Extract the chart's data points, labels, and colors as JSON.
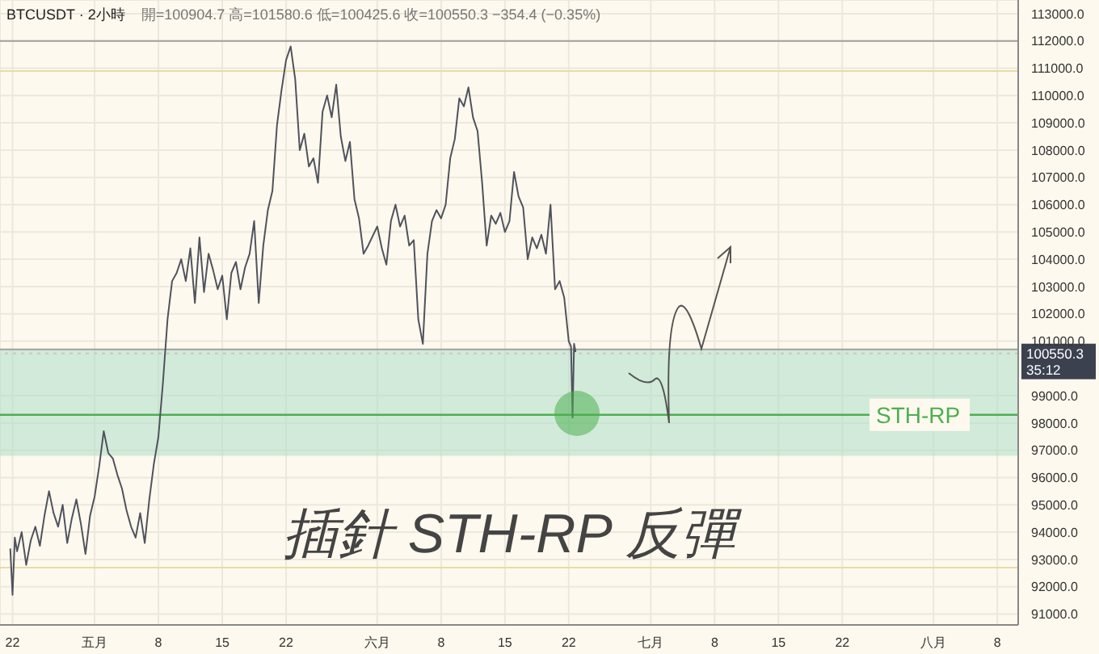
{
  "chart_data": {
    "type": "line",
    "title": "BTCUSDT · 2小時",
    "subtitle": "開=100904.7 高=101580.6 低=100425.6 收=100550.3 −354.4 (−0.35%)",
    "annotations": [
      "插針 STH-RP 反彈",
      "35:12"
    ],
    "x": [
      "--04-21T18:00",
      "--04-22T00:00",
      "--04-22T06:00",
      "--04-22T12:00",
      "--04-23T00:00",
      "--04-23T12:00",
      "--04-24T00:00",
      "--04-24T12:00",
      "--04-25T00:00",
      "--04-25T12:00",
      "--04-26T00:00",
      "--04-26T12:00",
      "--04-27T00:00",
      "--04-27T12:00",
      "--04-28T00:00",
      "--04-28T12:00",
      "--04-29T00:00",
      "--04-29T12:00",
      "--04-30T00:00",
      "--04-30T12:00",
      "--05-01T00:00",
      "--05-01T12:00",
      "--05-02T00:00",
      "--05-02T12:00",
      "--05-03T00:00",
      "--05-03T12:00",
      "--05-04T00:00",
      "--05-04T12:00",
      "--05-05T00:00",
      "--05-05T12:00",
      "--05-06T00:00",
      "--05-06T12:00",
      "--05-07T00:00",
      "--05-07T12:00",
      "--05-08T00:00",
      "--05-08T12:00",
      "--05-09T00:00",
      "--05-09T12:00",
      "--05-10T00:00",
      "--05-10T12:00",
      "--05-11T00:00",
      "--05-11T12:00",
      "--05-12T00:00",
      "--05-12T12:00",
      "--05-13T00:00",
      "--05-13T12:00",
      "--05-14T00:00",
      "--05-14T12:00",
      "--05-15T00:00",
      "--05-15T12:00",
      "--05-16T00:00",
      "--05-16T12:00",
      "--05-17T00:00",
      "--05-17T12:00",
      "--05-18T00:00",
      "--05-18T12:00",
      "--05-19T00:00",
      "--05-19T12:00",
      "--05-20T00:00",
      "--05-20T12:00",
      "--05-21T00:00",
      "--05-21T12:00",
      "--05-22T00:00",
      "--05-22T12:00",
      "--05-23T00:00",
      "--05-23T12:00",
      "--05-24T00:00",
      "--05-24T12:00",
      "--05-25T00:00",
      "--05-25T12:00",
      "--05-26T00:00",
      "--05-26T12:00",
      "--05-27T00:00",
      "--05-27T12:00",
      "--05-28T00:00",
      "--05-28T12:00",
      "--05-29T00:00",
      "--05-29T12:00",
      "--05-30T00:00",
      "--05-30T12:00",
      "--05-31T00:00",
      "--06-01T00:00",
      "--06-01T12:00",
      "--06-02T00:00",
      "--06-02T12:00",
      "--06-03T00:00",
      "--06-03T12:00",
      "--06-04T00:00",
      "--06-04T12:00",
      "--06-05T00:00",
      "--06-05T12:00",
      "--06-06T00:00",
      "--06-06T12:00",
      "--06-07T00:00",
      "--06-07T12:00",
      "--06-08T00:00",
      "--06-08T12:00",
      "--06-09T00:00",
      "--06-09T12:00",
      "--06-10T00:00",
      "--06-10T12:00",
      "--06-11T00:00",
      "--06-11T12:00",
      "--06-12T00:00",
      "--06-12T12:00",
      "--06-13T00:00",
      "--06-13T12:00",
      "--06-14T00:00",
      "--06-14T12:00",
      "--06-15T00:00",
      "--06-15T12:00",
      "--06-16T00:00",
      "--06-16T12:00",
      "--06-17T00:00",
      "--06-17T12:00",
      "--06-18T00:00",
      "--06-18T12:00",
      "--06-19T00:00",
      "--06-19T12:00",
      "--06-20T00:00",
      "--06-20T12:00",
      "--06-21T00:00",
      "--06-21T12:00",
      "--06-22T00:00",
      "--06-22T06:00",
      "--06-22T10:00",
      "--06-22T14:00",
      "--06-22T18:00"
    ],
    "series": [
      {
        "color": "#50535e",
        "values": [
          93400,
          91700,
          93800,
          93300,
          94000,
          92800,
          93700,
          94200,
          93500,
          94600,
          95500,
          94700,
          94200,
          95000,
          93600,
          94500,
          95200,
          94300,
          93200,
          94600,
          95300,
          96400,
          97700,
          96900,
          96700,
          96100,
          95600,
          94800,
          94200,
          93800,
          94700,
          93600,
          95200,
          96500,
          97500,
          99500,
          101800,
          103200,
          103500,
          104000,
          103200,
          104400,
          102400,
          104800,
          102800,
          104200,
          103600,
          102900,
          103400,
          101800,
          103500,
          103900,
          102900,
          103700,
          104200,
          105400,
          102400,
          104500,
          105800,
          106500,
          108900,
          110200,
          111300,
          111800,
          110600,
          108000,
          108600,
          107400,
          107700,
          106800,
          109400,
          110000,
          109200,
          110400,
          108500,
          107600,
          108300,
          106200,
          105500,
          104200,
          104500,
          105200,
          104400,
          103800,
          105400,
          106000,
          105200,
          105600,
          104500,
          104700,
          101800,
          100900,
          104200,
          105400,
          105800,
          105500,
          106000,
          107700,
          108400,
          109900,
          109600,
          110300,
          109200,
          108700,
          106800,
          104500,
          105600,
          105300,
          105700,
          105000,
          105400,
          107200,
          106300,
          105900,
          104000,
          104800,
          104400,
          104900,
          104200,
          106000,
          102900,
          103200,
          102600,
          101000,
          100800,
          98200,
          100900,
          100600
        ]
      }
    ],
    "xlim": [
      "--04-20T15:00",
      "--08-10T07:00"
    ],
    "xticks": [
      {
        "value": "--04-22",
        "label": "22"
      },
      {
        "value": "--05-01",
        "label": "五月"
      },
      {
        "value": "--05-08",
        "label": "8"
      },
      {
        "value": "--05-15",
        "label": "15"
      },
      {
        "value": "--05-22",
        "label": "22"
      },
      {
        "value": "--06-01",
        "label": "六月"
      },
      {
        "value": "--06-08",
        "label": "8"
      },
      {
        "value": "--06-15",
        "label": "15"
      },
      {
        "value": "--06-22",
        "label": "22"
      },
      {
        "value": "--07-01",
        "label": "七月"
      },
      {
        "value": "--07-08",
        "label": "8"
      },
      {
        "value": "--07-15",
        "label": "15"
      },
      {
        "value": "--07-22",
        "label": "22"
      },
      {
        "value": "--08-01",
        "label": "八月"
      },
      {
        "value": "--08-08",
        "label": "8"
      }
    ],
    "ylim": [
      90600,
      113500
    ],
    "yticks": [
      {
        "value": 91000,
        "label": "91000.0"
      },
      {
        "value": 92000,
        "label": "92000.0"
      },
      {
        "value": 93000,
        "label": "93000.0"
      },
      {
        "value": 94000,
        "label": "94000.0"
      },
      {
        "value": 95000,
        "label": "95000.0"
      },
      {
        "value": 96000,
        "label": "96000.0"
      },
      {
        "value": 97000,
        "label": "97000.0"
      },
      {
        "value": 98000,
        "label": "98000.0"
      },
      {
        "value": 99000,
        "label": "99000.0"
      },
      {
        "value": 101000,
        "label": "101000.0"
      },
      {
        "value": 102000,
        "label": "102000.0"
      },
      {
        "value": 103000,
        "label": "103000.0"
      },
      {
        "value": 104000,
        "label": "104000.0"
      },
      {
        "value": 105000,
        "label": "105000.0"
      },
      {
        "value": 106000,
        "label": "106000.0"
      },
      {
        "value": 107000,
        "label": "107000.0"
      },
      {
        "value": 108000,
        "label": "108000.0"
      },
      {
        "value": 109000,
        "label": "109000.0"
      },
      {
        "value": 110000,
        "label": "110000.0"
      },
      {
        "value": 111000,
        "label": "111000.0"
      },
      {
        "value": 112000,
        "label": "112000.0"
      },
      {
        "value": 113000,
        "label": "113000.0"
      }
    ],
    "grid": true,
    "ref_lines": [
      {
        "axis": "y",
        "value": 98300,
        "label": "STH-RP",
        "color": "#4caf50"
      },
      {
        "axis": "y",
        "value": 112000,
        "color": "#a0a0a0"
      },
      {
        "axis": "y",
        "value": 100700,
        "color": "#a0a0a0"
      },
      {
        "axis": "y",
        "value": 110900,
        "color": "#eadba6"
      },
      {
        "axis": "y",
        "value": 92700,
        "color": "#eadba6"
      },
      {
        "axis": "y",
        "value": 100550.3,
        "label": "100550.3",
        "color": "#c8c8c8",
        "line_style": "dotted"
      }
    ],
    "bands": [
      {
        "axis": "y",
        "from": 96800,
        "to": 100700,
        "color": "#a8dcc4"
      }
    ]
  }
}
